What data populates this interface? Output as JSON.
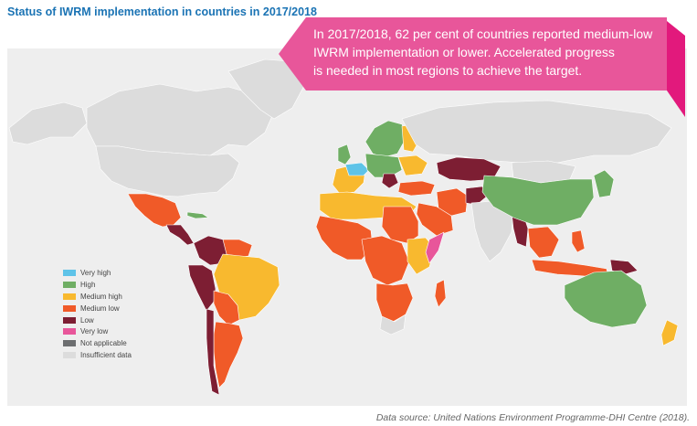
{
  "title": "Status of IWRM implementation in countries in 2017/2018",
  "callout": {
    "lines": [
      "In 2017/2018, 62 per cent of countries reported medium-low",
      "IWRM implementation or lower. Accelerated progress",
      "is needed in most regions to achieve the target."
    ],
    "color": "#e8569a",
    "accent_color": "#e2197c"
  },
  "legend": {
    "items": [
      {
        "label": "Very high",
        "color": "#5ec3e8"
      },
      {
        "label": "High",
        "color": "#6fae64"
      },
      {
        "label": "Medium high",
        "color": "#f8b92f"
      },
      {
        "label": "Medium low",
        "color": "#f05a28"
      },
      {
        "label": "Low",
        "color": "#7d1e33"
      },
      {
        "label": "Very low",
        "color": "#e8569a"
      },
      {
        "label": "Not applicable",
        "color": "#6d6e70"
      },
      {
        "label": "Insufficient data",
        "color": "#dcdcdc"
      }
    ]
  },
  "source": "Data source: United Nations Environment Programme-DHI Centre (2018).",
  "colors": {
    "map_background": "#eeeeee",
    "land_insufficient": "#dcdcdc",
    "border": "#ffffff",
    "title": "#1a73b4"
  }
}
